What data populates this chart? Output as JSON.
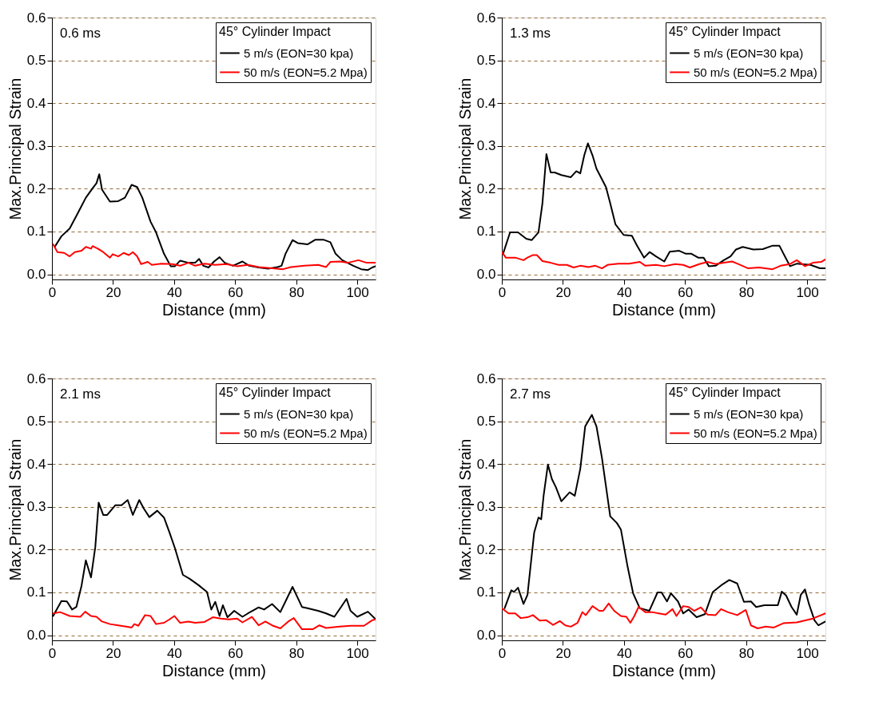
{
  "chart_data": [
    {
      "type": "line",
      "annotations": [
        "0.6 ms"
      ],
      "xlabel": "Distance (mm)",
      "ylabel": "Max.Principal Strain",
      "legend_title": "45° Cylinder Impact",
      "legend": "top right",
      "grid": "y",
      "xlim": [
        0,
        106
      ],
      "ylim": [
        -0.012,
        0.6
      ],
      "xticks": [
        0,
        20,
        40,
        60,
        80,
        100
      ],
      "yticks": [
        {
          "value": 0,
          "label": "0.0"
        },
        {
          "value": 0.1,
          "label": "0.1"
        },
        {
          "value": 0.2,
          "label": "0.2"
        },
        {
          "value": 0.3,
          "label": "0.3"
        },
        {
          "value": 0.4,
          "label": "0.4"
        },
        {
          "value": 0.5,
          "label": "0.5"
        },
        {
          "value": 0.6,
          "label": "0.6"
        }
      ],
      "series": [
        {
          "name": "5  m/s (EON=30 kpa)",
          "color": "#000000",
          "x": [
            0.9,
            3.1,
            5.8,
            8.4,
            11.1,
            13.3,
            14.6,
            15.5,
            16.4,
            19,
            21.7,
            23.9,
            26.1,
            27.9,
            29.6,
            32.3,
            34.1,
            36.7,
            38.9,
            40.3,
            42,
            44.7,
            46.9,
            48.2,
            49.6,
            51.3,
            53.1,
            54.9,
            56.6,
            59.3,
            62.4,
            64.6,
            67.7,
            70.8,
            73.9,
            75.2,
            76.5,
            78.8,
            80.5,
            83.7,
            86.3,
            88.9,
            91.2,
            92.9,
            95.1,
            98.7,
            101.3,
            103.5,
            104.9,
            106
          ],
          "values": [
            0.064,
            0.089,
            0.107,
            0.142,
            0.179,
            0.201,
            0.213,
            0.234,
            0.198,
            0.17,
            0.171,
            0.179,
            0.209,
            0.204,
            0.179,
            0.123,
            0.098,
            0.048,
            0.019,
            0.019,
            0.032,
            0.027,
            0.027,
            0.036,
            0.02,
            0.016,
            0.03,
            0.04,
            0.027,
            0.02,
            0.03,
            0.02,
            0.016,
            0.013,
            0.017,
            0.02,
            0.048,
            0.08,
            0.073,
            0.07,
            0.081,
            0.081,
            0.075,
            0.048,
            0.033,
            0.02,
            0.012,
            0.01,
            0.016,
            0.019
          ]
        },
        {
          "name": "50 m/s (EON=5.2 Mpa)",
          "color": "#ff0000",
          "x": [
            0.4,
            1.8,
            4,
            5.8,
            7.5,
            9.7,
            11.1,
            12.8,
            13.3,
            15,
            16.8,
            19,
            19.9,
            21.7,
            23.5,
            25.2,
            26.5,
            27.9,
            29.2,
            31.4,
            32.7,
            35.8,
            39.4,
            42,
            44.7,
            46.9,
            50,
            53.5,
            57.1,
            60.6,
            64.2,
            67.7,
            72.1,
            75.7,
            78.3,
            82.7,
            87.2,
            89.8,
            91.2,
            94.2,
            96.9,
            100.4,
            103.1,
            106
          ],
          "values": [
            0.07,
            0.052,
            0.05,
            0.042,
            0.052,
            0.055,
            0.064,
            0.06,
            0.066,
            0.06,
            0.052,
            0.039,
            0.047,
            0.042,
            0.05,
            0.045,
            0.052,
            0.042,
            0.024,
            0.029,
            0.022,
            0.025,
            0.024,
            0.02,
            0.027,
            0.02,
            0.025,
            0.022,
            0.024,
            0.019,
            0.022,
            0.017,
            0.014,
            0.012,
            0.017,
            0.02,
            0.022,
            0.017,
            0.029,
            0.03,
            0.027,
            0.033,
            0.027,
            0.027
          ]
        }
      ]
    },
    {
      "type": "line",
      "annotations": [
        "1.3 ms"
      ],
      "xlabel": "Distance (mm)",
      "ylabel": "Max.Principal Strain",
      "legend_title": "45° Cylinder Impact",
      "legend": "top right",
      "grid": "y",
      "xlim": [
        0,
        106
      ],
      "ylim": [
        -0.012,
        0.6
      ],
      "xticks": [
        0,
        20,
        40,
        60,
        80,
        100
      ],
      "yticks": [
        {
          "value": 0,
          "label": "0.0"
        },
        {
          "value": 0.1,
          "label": "0.1"
        },
        {
          "value": 0.2,
          "label": "0.2"
        },
        {
          "value": 0.3,
          "label": "0.3"
        },
        {
          "value": 0.4,
          "label": "0.4"
        },
        {
          "value": 0.5,
          "label": "0.5"
        },
        {
          "value": 0.6,
          "label": "0.6"
        }
      ],
      "series": [
        {
          "name": "5  m/s (EON=30 kpa)",
          "color": "#000000",
          "x": [
            0.4,
            2.7,
            5.3,
            8,
            9.8,
            12,
            13.3,
            14.6,
            16,
            17.3,
            19.5,
            22.6,
            24.4,
            25.7,
            27,
            28.2,
            29.7,
            31,
            34.1,
            35.5,
            37.2,
            39.9,
            42.6,
            44.3,
            46.6,
            48.4,
            50.5,
            53.2,
            55,
            58.1,
            60.3,
            62.1,
            64.3,
            66.1,
            67.8,
            70,
            72.7,
            74.9,
            76.7,
            78.9,
            82.4,
            85.5,
            88.7,
            90.9,
            92.7,
            94.4,
            96.7,
            101.1,
            104.2,
            106
          ],
          "values": [
            0.048,
            0.098,
            0.098,
            0.083,
            0.08,
            0.098,
            0.166,
            0.281,
            0.238,
            0.238,
            0.232,
            0.227,
            0.241,
            0.236,
            0.278,
            0.306,
            0.278,
            0.247,
            0.204,
            0.166,
            0.117,
            0.092,
            0.09,
            0.067,
            0.039,
            0.052,
            0.042,
            0.03,
            0.053,
            0.055,
            0.048,
            0.048,
            0.039,
            0.039,
            0.019,
            0.02,
            0.033,
            0.042,
            0.058,
            0.064,
            0.058,
            0.059,
            0.067,
            0.067,
            0.042,
            0.019,
            0.025,
            0.022,
            0.014,
            0.014
          ]
        },
        {
          "name": "50 m/s (EON=5.2 Mpa)",
          "color": "#ff0000",
          "x": [
            0,
            1.3,
            4.4,
            7.1,
            8.4,
            10.2,
            11.5,
            13.3,
            16,
            18.6,
            21.3,
            23.5,
            25.7,
            28.4,
            30.6,
            32.8,
            34.6,
            38.1,
            41.7,
            45.2,
            47,
            50.5,
            53.2,
            56.8,
            59.4,
            61.6,
            64.7,
            67.4,
            70,
            72.7,
            75.4,
            77.1,
            80.7,
            84.2,
            88.7,
            91.3,
            94.4,
            96.6,
            99.3,
            101.9,
            104.6,
            106
          ],
          "values": [
            0.052,
            0.039,
            0.039,
            0.033,
            0.039,
            0.045,
            0.045,
            0.031,
            0.027,
            0.022,
            0.022,
            0.016,
            0.02,
            0.017,
            0.02,
            0.014,
            0.022,
            0.025,
            0.025,
            0.029,
            0.02,
            0.022,
            0.019,
            0.024,
            0.022,
            0.016,
            0.024,
            0.029,
            0.024,
            0.027,
            0.03,
            0.025,
            0.014,
            0.016,
            0.012,
            0.02,
            0.024,
            0.033,
            0.019,
            0.027,
            0.029,
            0.035
          ]
        }
      ]
    },
    {
      "type": "line",
      "annotations": [
        "2.1 ms"
      ],
      "xlabel": "Distance (mm)",
      "ylabel": "Max.Principal Strain",
      "legend_title": "45° Cylinder Impact",
      "legend": "top right",
      "grid": "y",
      "xlim": [
        0,
        106
      ],
      "ylim": [
        -0.012,
        0.6
      ],
      "xticks": [
        0,
        20,
        40,
        60,
        80,
        100
      ],
      "yticks": [
        {
          "value": 0,
          "label": "0.0"
        },
        {
          "value": 0.1,
          "label": "0.1"
        },
        {
          "value": 0.2,
          "label": "0.2"
        },
        {
          "value": 0.3,
          "label": "0.3"
        },
        {
          "value": 0.4,
          "label": "0.4"
        },
        {
          "value": 0.5,
          "label": "0.5"
        },
        {
          "value": 0.6,
          "label": "0.6"
        }
      ],
      "series": [
        {
          "name": "5  m/s (EON=30 kpa)",
          "color": "#000000",
          "x": [
            0.4,
            3.1,
            4.9,
            6.6,
            8,
            9.7,
            11.1,
            12.8,
            14.2,
            15.3,
            16.8,
            18.1,
            20.8,
            22.8,
            24.8,
            26.5,
            28.6,
            30.1,
            31.9,
            34.5,
            36.7,
            38.5,
            40.3,
            42.9,
            45.1,
            48.2,
            50.8,
            52.2,
            53.5,
            54.9,
            56,
            57.5,
            59.7,
            62.4,
            64.2,
            67.7,
            69.5,
            72.1,
            74.8,
            76.5,
            78.8,
            81.9,
            83.7,
            87.2,
            89.8,
            92.5,
            94.7,
            96.5,
            97.8,
            100,
            103.5,
            105.8
          ],
          "values": [
            0.045,
            0.08,
            0.079,
            0.06,
            0.066,
            0.116,
            0.175,
            0.135,
            0.206,
            0.31,
            0.281,
            0.281,
            0.304,
            0.304,
            0.316,
            0.281,
            0.316,
            0.296,
            0.276,
            0.291,
            0.275,
            0.24,
            0.203,
            0.141,
            0.132,
            0.116,
            0.101,
            0.06,
            0.078,
            0.045,
            0.07,
            0.042,
            0.057,
            0.043,
            0.051,
            0.065,
            0.06,
            0.073,
            0.054,
            0.079,
            0.113,
            0.066,
            0.063,
            0.057,
            0.051,
            0.043,
            0.066,
            0.085,
            0.057,
            0.043,
            0.055,
            0.039
          ]
        },
        {
          "name": "50 m/s (EON=5.2 Mpa)",
          "color": "#ff0000",
          "x": [
            0.4,
            2.7,
            5.8,
            9.3,
            10.9,
            12.8,
            14.6,
            16.4,
            19,
            21.7,
            24.3,
            26.1,
            27,
            28.3,
            30.5,
            32.3,
            34.1,
            36.7,
            38.5,
            40.1,
            42,
            44.7,
            46.9,
            50,
            52.7,
            55.3,
            57.9,
            60.6,
            62.4,
            65.5,
            67.7,
            69.9,
            72.1,
            74.8,
            77.4,
            79.2,
            81.9,
            85.4,
            87.6,
            89.8,
            94.2,
            97.8,
            102.2,
            104.9,
            106
          ],
          "values": [
            0.051,
            0.054,
            0.045,
            0.043,
            0.055,
            0.045,
            0.043,
            0.032,
            0.026,
            0.023,
            0.02,
            0.018,
            0.026,
            0.022,
            0.047,
            0.045,
            0.026,
            0.029,
            0.037,
            0.045,
            0.029,
            0.032,
            0.029,
            0.031,
            0.042,
            0.039,
            0.037,
            0.039,
            0.03,
            0.043,
            0.023,
            0.032,
            0.023,
            0.016,
            0.032,
            0.04,
            0.014,
            0.014,
            0.023,
            0.017,
            0.02,
            0.022,
            0.022,
            0.035,
            0.037
          ]
        }
      ]
    },
    {
      "type": "line",
      "annotations": [
        "2.7 ms"
      ],
      "xlabel": "Distance (mm)",
      "ylabel": "Max.Principal Strain",
      "legend_title": "45° Cylinder Impact",
      "legend": "top right",
      "grid": "y",
      "xlim": [
        0,
        106
      ],
      "ylim": [
        -0.012,
        0.6
      ],
      "xticks": [
        0,
        20,
        40,
        60,
        80,
        100
      ],
      "yticks": [
        {
          "value": 0,
          "label": "0.0"
        },
        {
          "value": 0.1,
          "label": "0.1"
        },
        {
          "value": 0.2,
          "label": "0.2"
        },
        {
          "value": 0.3,
          "label": "0.3"
        },
        {
          "value": 0.4,
          "label": "0.4"
        },
        {
          "value": 0.5,
          "label": "0.5"
        },
        {
          "value": 0.6,
          "label": "0.6"
        }
      ],
      "series": [
        {
          "name": "5  m/s (EON=30 kpa)",
          "color": "#000000",
          "x": [
            0.9,
            3.1,
            4,
            5.3,
            7.1,
            8.4,
            10.6,
            12,
            12.9,
            13.7,
            15.1,
            16.4,
            17.7,
            19.5,
            22.2,
            23.9,
            25.7,
            27.3,
            29.5,
            31,
            32.8,
            35.5,
            37.7,
            39,
            41.2,
            43,
            45.2,
            48.3,
            51,
            52.3,
            54.1,
            55.4,
            57.7,
            59.4,
            61.2,
            63.8,
            66.5,
            69.1,
            72.3,
            74.5,
            77.1,
            79.3,
            81.6,
            83.3,
            86,
            90.4,
            91.7,
            93.1,
            94.9,
            96.6,
            97.9,
            99.3,
            100.6,
            102.4,
            103.7,
            106
          ],
          "values": [
            0.063,
            0.105,
            0.101,
            0.111,
            0.073,
            0.094,
            0.24,
            0.275,
            0.271,
            0.327,
            0.399,
            0.365,
            0.346,
            0.313,
            0.334,
            0.326,
            0.389,
            0.488,
            0.515,
            0.488,
            0.414,
            0.278,
            0.262,
            0.247,
            0.16,
            0.098,
            0.063,
            0.057,
            0.1,
            0.1,
            0.079,
            0.098,
            0.079,
            0.051,
            0.06,
            0.042,
            0.049,
            0.101,
            0.119,
            0.129,
            0.121,
            0.078,
            0.079,
            0.066,
            0.07,
            0.07,
            0.102,
            0.093,
            0.066,
            0.048,
            0.094,
            0.107,
            0.073,
            0.035,
            0.023,
            0.032
          ]
        },
        {
          "name": "50 m/s (EON=5.2 Mpa)",
          "color": "#ff0000",
          "x": [
            0,
            2.2,
            4.4,
            6.2,
            8.4,
            10.2,
            12.4,
            14.6,
            16.8,
            19,
            20.8,
            22.6,
            24.8,
            26.4,
            27.5,
            29.7,
            31.9,
            33.2,
            35,
            36.8,
            39,
            40.8,
            42.1,
            43.4,
            44.8,
            47,
            49.3,
            51.4,
            53.7,
            55.9,
            57.2,
            59.4,
            61.2,
            63,
            65.2,
            67.4,
            70,
            71.8,
            74,
            77.1,
            79.9,
            81.6,
            83.8,
            86.4,
            89.1,
            92.2,
            96.6,
            101.9,
            106
          ],
          "values": [
            0.063,
            0.051,
            0.051,
            0.04,
            0.042,
            0.047,
            0.034,
            0.035,
            0.024,
            0.033,
            0.023,
            0.02,
            0.029,
            0.054,
            0.047,
            0.068,
            0.057,
            0.057,
            0.074,
            0.057,
            0.045,
            0.043,
            0.029,
            0.045,
            0.066,
            0.054,
            0.054,
            0.051,
            0.048,
            0.061,
            0.045,
            0.068,
            0.066,
            0.057,
            0.065,
            0.048,
            0.047,
            0.061,
            0.054,
            0.047,
            0.059,
            0.023,
            0.016,
            0.02,
            0.018,
            0.028,
            0.03,
            0.039,
            0.051
          ]
        }
      ]
    }
  ]
}
